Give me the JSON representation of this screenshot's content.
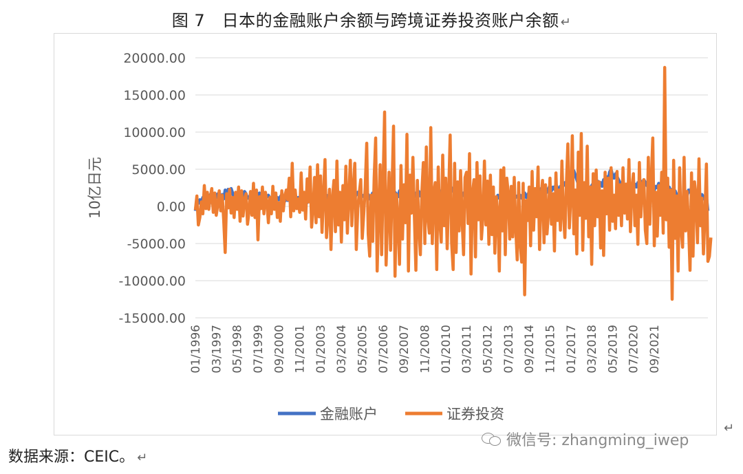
{
  "figure_title": "图 7　日本的金融账户余额与跨境证券投资账户余额",
  "return_mark": "↵",
  "source_text": "数据来源：CEIC。",
  "watermark_text": "微信号: zhangming_iwep",
  "colors": {
    "financial_account": "#4472C4",
    "portfolio_investment": "#ED7D31",
    "grid": "#D9D9D9",
    "axis_text": "#595959"
  },
  "chart_data": {
    "type": "line",
    "ylabel": "10亿日元",
    "ylim": [
      -15000,
      20000
    ],
    "yticks": [
      "20000.00",
      "15000.00",
      "10000.00",
      "5000.00",
      "0.00",
      "-5000.00",
      "-10000.00",
      "-15000.00"
    ],
    "ytick_values": [
      20000,
      15000,
      10000,
      5000,
      0,
      -5000,
      -10000,
      -15000
    ],
    "grid": true,
    "legend_position": "bottom",
    "x_start": "01/1996",
    "x_end": "04/2022",
    "xticks": [
      "01/1996",
      "03/1997",
      "05/1998",
      "07/1999",
      "09/2000",
      "11/2001",
      "01/2003",
      "03/2004",
      "05/2005",
      "07/2006",
      "09/2007",
      "11/2008",
      "01/2010",
      "03/2011",
      "05/2012",
      "07/2013",
      "09/2014",
      "11/2015",
      "01/2017",
      "03/2018",
      "05/2019",
      "07/2020",
      "09/2021"
    ],
    "series": [
      {
        "name": "金融账户",
        "color": "#4472C4",
        "values": [
          -600,
          1000,
          400,
          900,
          600,
          1200,
          800,
          700,
          -200,
          1000,
          1600,
          500,
          900,
          1400,
          1200,
          1700,
          600,
          1200,
          1600,
          1000,
          2200,
          1400,
          2300,
          1500,
          2400,
          1800,
          1000,
          1600,
          1400,
          1800,
          1200,
          900,
          1400,
          2000,
          1700,
          1100,
          1300,
          600,
          900,
          -200,
          800,
          1100,
          1500,
          1800,
          1400,
          1200,
          1700,
          900,
          1300,
          1500,
          1100,
          800,
          1400,
          700,
          1100,
          1200,
          900,
          1300,
          1600,
          800,
          700,
          1000,
          800,
          1100,
          500,
          900,
          700,
          1300,
          200,
          1200,
          800,
          900,
          600,
          1000,
          1300,
          500,
          900,
          1100,
          700,
          1200,
          1000,
          600,
          800,
          1000,
          1300,
          700,
          1100,
          900,
          1500,
          1200,
          800,
          1100,
          1300,
          900,
          1600,
          1200,
          1000,
          1400,
          1800,
          1100,
          1200,
          1400,
          900,
          1500,
          1700,
          1300,
          1000,
          1200,
          1600,
          1900,
          1400,
          1100,
          1500,
          1300,
          1700,
          1200,
          1600,
          1000,
          1400,
          1800,
          1300,
          1500,
          1100,
          1700,
          1400,
          1900,
          1200,
          1600,
          1300,
          2000,
          1500,
          1200,
          1700,
          1400,
          1900,
          1600,
          1300,
          2100,
          1500,
          1800,
          1400,
          1700,
          1200,
          1900,
          1600,
          2200,
          1500,
          1300,
          1800,
          1600,
          2000,
          1400,
          1700,
          1900,
          1500,
          2100,
          1700,
          1400,
          2300,
          1800,
          1600,
          2000,
          1500,
          1900,
          2100,
          1700,
          2400,
          1800,
          2000,
          1600,
          2200,
          1900,
          2500,
          2100,
          1800,
          1900,
          1500,
          2100,
          1700,
          1400,
          1800,
          1300,
          1600,
          1900,
          1200,
          1500,
          1800,
          2000,
          1400,
          1700,
          1100,
          900,
          600,
          1200,
          1400,
          800,
          1000,
          700,
          1100,
          900,
          1300,
          1200,
          800,
          1500,
          1100,
          1400,
          900,
          1600,
          1200,
          1000,
          1300,
          1500,
          900,
          700,
          1100,
          1200,
          1400,
          1300,
          1500,
          1100,
          1700,
          1800,
          1200,
          1600,
          1900,
          2100,
          1700,
          2000,
          1800,
          2300,
          1900,
          2200,
          2400,
          2000,
          2500,
          2200,
          1900,
          2400,
          2800,
          2100,
          2600,
          2300,
          3000,
          2500,
          2200,
          2700,
          2400,
          2900,
          3200,
          2600,
          3000,
          2800,
          3500,
          4000,
          4800,
          4200,
          3600,
          3000,
          2800,
          3200,
          2600,
          2900,
          2400,
          2700,
          2200,
          2500,
          2800,
          3100,
          2600,
          2900,
          3400,
          2800,
          3200,
          2700,
          3600,
          3000,
          4000,
          3500,
          4600,
          5000,
          4200,
          3800,
          4400,
          4000,
          3600,
          3200,
          2800,
          3000,
          2500,
          2200,
          2600,
          2400,
          2800,
          2300,
          2700,
          3000,
          2600,
          3200,
          2900,
          3400,
          3000,
          3600,
          3200,
          2800,
          3000,
          2600,
          2400,
          2900,
          2200,
          2700,
          2500,
          3100,
          2800,
          2600,
          3000,
          2400,
          2800,
          2200,
          2600,
          2000,
          2300,
          1800,
          2100,
          1600,
          1200,
          1500,
          900,
          600,
          1200,
          1800,
          1400,
          2200,
          1900,
          2600,
          2200,
          1800,
          1400,
          1000,
          800,
          1200,
          1600,
          1300,
          900,
          1400,
          -600
        ]
      },
      {
        "name": "证券投资",
        "color": "#ED7D31",
        "values": [
          -500,
          1400,
          -2500,
          -1500,
          600,
          -1000,
          2800,
          -300,
          1900,
          -400,
          1200,
          2400,
          -800,
          1800,
          -1200,
          200,
          2100,
          -600,
          1500,
          -1800,
          -6200,
          1700,
          -200,
          2300,
          -900,
          1200,
          -1500,
          1900,
          -400,
          2600,
          -2000,
          2100,
          -1300,
          1000,
          1700,
          -2400,
          -700,
          2000,
          -1200,
          3100,
          -1500,
          2200,
          -4500,
          1300,
          -300,
          2600,
          -1000,
          1900,
          600,
          -2200,
          1200,
          -1000,
          2700,
          -400,
          1800,
          -1500,
          500,
          -2000,
          2100,
          -600,
          1400,
          2200,
          900,
          3800,
          -1400,
          5800,
          -600,
          2200,
          -300,
          1000,
          -800,
          4500,
          -500,
          1900,
          -1700,
          3700,
          600,
          5300,
          -2800,
          -500,
          3900,
          -2200,
          5600,
          -1400,
          4100,
          -3500,
          1500,
          6300,
          -4200,
          -1000,
          2300,
          -5800,
          1100,
          3500,
          -3400,
          6100,
          -2500,
          1900,
          -4800,
          2800,
          -1800,
          5400,
          -3600,
          1200,
          6200,
          -2600,
          2500,
          5800,
          -5800,
          -300,
          1800,
          3600,
          -4300,
          -1000,
          2600,
          8500,
          -3700,
          -6700,
          1500,
          -4700,
          3800,
          9200,
          -8700,
          -800,
          5600,
          -6500,
          3200,
          12700,
          -7900,
          -1400,
          4600,
          -5900,
          2400,
          10800,
          -9400,
          1600,
          -2100,
          -7800,
          5500,
          -4400,
          2900,
          -2200,
          9700,
          -8700,
          4200,
          -900,
          6600,
          -1300,
          -8600,
          3500,
          -2700,
          -6500,
          1900,
          5900,
          -5000,
          8000,
          -1400,
          -3600,
          10600,
          -5000,
          1800,
          3200,
          -8500,
          5300,
          -1800,
          -4800,
          6900,
          -2600,
          3800,
          -5700,
          1600,
          9600,
          -4900,
          -8500,
          5800,
          -6200,
          3300,
          -3300,
          4800,
          -1700,
          -6500,
          3900,
          4600,
          -2300,
          7100,
          -9100,
          1800,
          3600,
          -6800,
          5900,
          -1800,
          4100,
          -4400,
          -1300,
          6100,
          -2500,
          3400,
          -5100,
          4200,
          -3800,
          2600,
          -6300,
          1300,
          -1100,
          -8700,
          4900,
          -3300,
          5200,
          -6500,
          3800,
          1800,
          -4400,
          2700,
          -4100,
          3900,
          -2900,
          -7200,
          3200,
          -4900,
          -7500,
          3100,
          -11900,
          800,
          -1900,
          2600,
          -5300,
          4700,
          -3200,
          2400,
          -1400,
          5300,
          -5800,
          1200,
          3500,
          -4900,
          2900,
          -3700,
          -800,
          3800,
          -2400,
          1700,
          -6000,
          4500,
          -1900,
          2200,
          -3200,
          6100,
          -900,
          -4200,
          2800,
          8400,
          -2900,
          1500,
          9500,
          -3700,
          2200,
          -6400,
          7300,
          -1200,
          9800,
          -5900,
          3200,
          -1600,
          8100,
          -4100,
          2600,
          -7800,
          4400,
          -2600,
          4900,
          -1400,
          3300,
          -5600,
          2100,
          -6600,
          4600,
          -1000,
          3800,
          -3200,
          5200,
          -2000,
          1500,
          -3000,
          4700,
          -1200,
          2900,
          -2600,
          5200,
          -900,
          3000,
          -1700,
          6300,
          -3400,
          2400,
          4400,
          -2600,
          1500,
          -5100,
          5900,
          -1400,
          2900,
          3600,
          -3200,
          -5000,
          6600,
          -2400,
          3600,
          9200,
          -5300,
          1900,
          -4000,
          2800,
          -1200,
          4600,
          -3600,
          18700,
          -1800,
          3800,
          -5500,
          2200,
          -12500,
          6200,
          -4300,
          1400,
          -8700,
          5200,
          -2900,
          -5500,
          6600,
          -3300,
          2000,
          -2600,
          -8600,
          4500,
          -6700,
          3300,
          1500,
          -4900,
          6400,
          -2600,
          1100,
          -6400,
          -1200,
          5700,
          -7400,
          -6700,
          -4200
        ]
      }
    ]
  }
}
